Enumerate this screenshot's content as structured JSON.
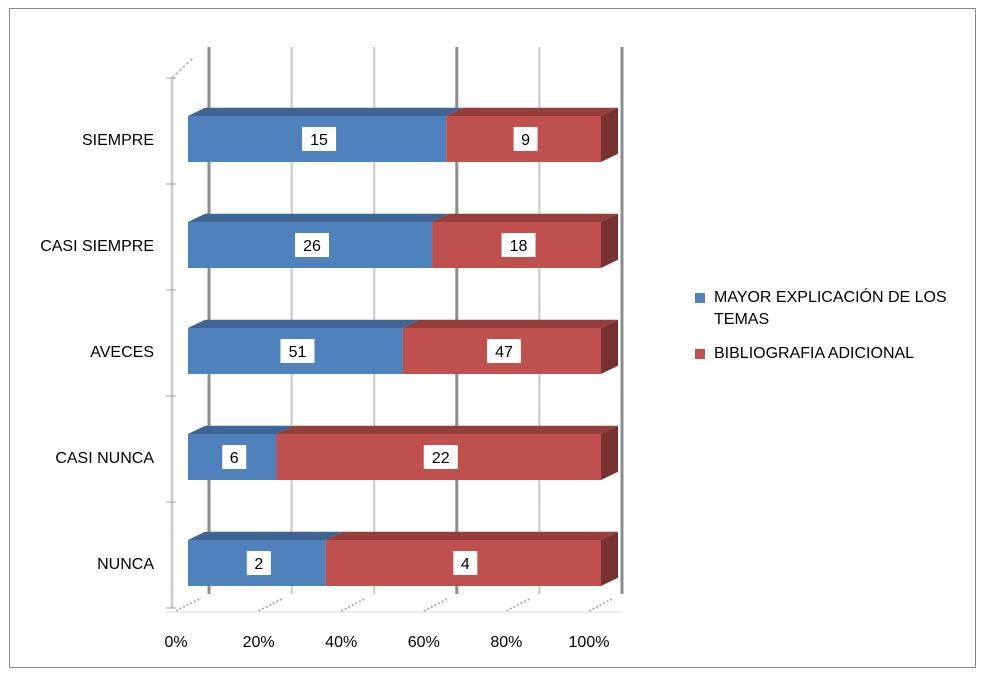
{
  "chart_data": {
    "type": "bar",
    "stacked": "percent",
    "orientation": "horizontal",
    "style": "3d",
    "categories": [
      "SIEMPRE",
      "CASI SIEMPRE",
      "AVECES",
      "CASI NUNCA",
      "NUNCA"
    ],
    "series": [
      {
        "name": "MAYOR EXPLICACIÓN DE LOS TEMAS",
        "values": [
          15,
          26,
          51,
          6,
          2
        ],
        "color": "#4f81bd"
      },
      {
        "name": "BIBLIOGRAFIA ADICIONAL",
        "values": [
          9,
          18,
          47,
          22,
          4
        ],
        "color": "#c0504d"
      }
    ],
    "x_ticks": [
      "0%",
      "20%",
      "40%",
      "60%",
      "80%",
      "100%"
    ],
    "xlim": [
      0,
      100
    ],
    "grid": true,
    "legend_position": "right",
    "data_labels": true
  }
}
